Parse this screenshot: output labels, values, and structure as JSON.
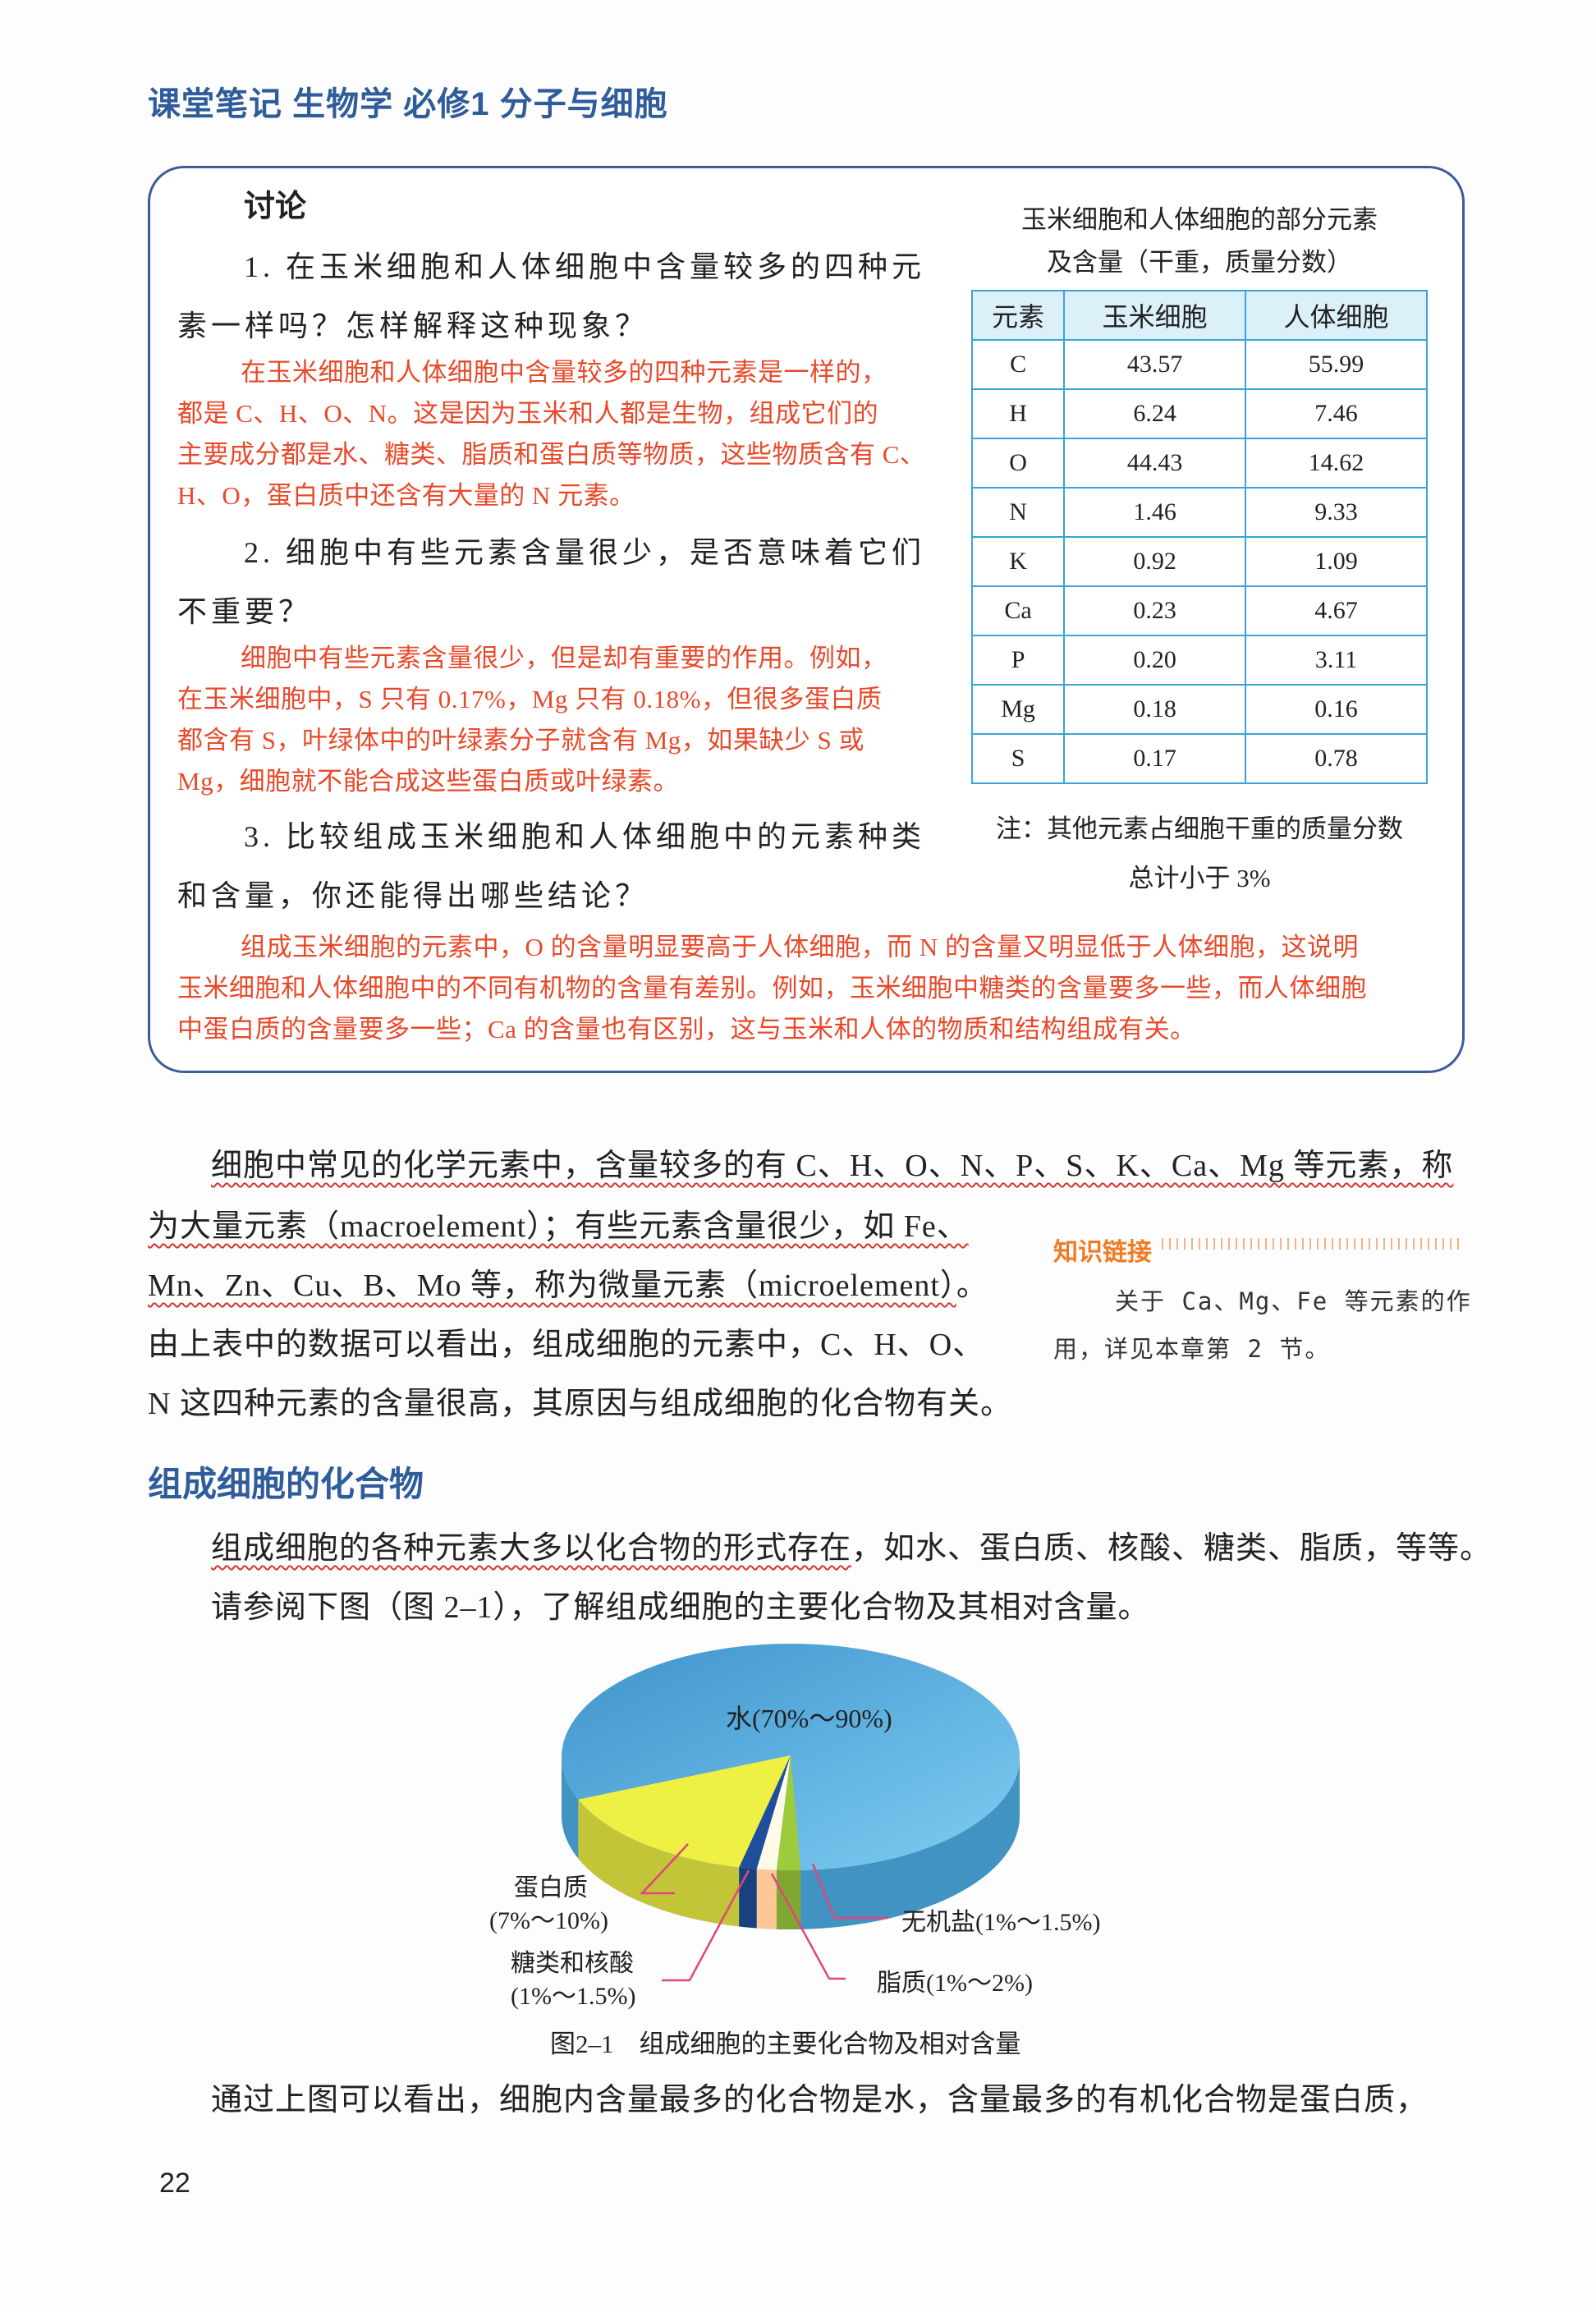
{
  "running_head": "课堂笔记 生物学 必修1 分子与细胞",
  "discussion": {
    "title": "讨论",
    "q1": [
      "1. 在玉米细胞和人体细胞中含量较多的四种元",
      "素一样吗？怎样解释这种现象？"
    ],
    "a1": [
      "在玉米细胞和人体细胞中含量较多的四种元素是一样的，",
      "都是 C、H、O、N。这是因为玉米和人都是生物，组成它们的",
      "主要成分都是水、糖类、脂质和蛋白质等物质，这些物质含有 C、",
      "H、O，蛋白质中还含有大量的 N 元素。"
    ],
    "q2": [
      "2. 细胞中有些元素含量很少，是否意味着它们",
      "不重要？"
    ],
    "a2": [
      "细胞中有些元素含量很少，但是却有重要的作用。例如，",
      "在玉米细胞中，S 只有 0.17%，Mg 只有 0.18%，但很多蛋白质",
      "都含有 S，叶绿体中的叶绿素分子就含有 Mg，如果缺少 S 或",
      "Mg，细胞就不能合成这些蛋白质或叶绿素。"
    ],
    "q3": [
      "3. 比较组成玉米细胞和人体细胞中的元素种类",
      "和含量，你还能得出哪些结论？"
    ],
    "a3": [
      "组成玉米细胞的元素中，O 的含量明显要高于人体细胞，而 N 的含量又明显低于人体细胞，这说明",
      "玉米细胞和人体细胞中的不同有机物的含量有差别。例如，玉米细胞中糖类的含量要多一些，而人体细胞",
      "中蛋白质的含量要多一些；Ca 的含量也有区别，这与玉米和人体的物质和结构组成有关。"
    ]
  },
  "table": {
    "caption": [
      "玉米细胞和人体细胞的部分元素",
      "及含量（干重，质量分数）"
    ],
    "headers": [
      "元素",
      "玉米细胞",
      "人体细胞"
    ],
    "rows": [
      [
        "C",
        "43.57",
        "55.99"
      ],
      [
        "H",
        "6.24",
        "7.46"
      ],
      [
        "O",
        "44.43",
        "14.62"
      ],
      [
        "N",
        "1.46",
        "9.33"
      ],
      [
        "K",
        "0.92",
        "1.09"
      ],
      [
        "Ca",
        "0.23",
        "4.67"
      ],
      [
        "P",
        "0.20",
        "3.11"
      ],
      [
        "Mg",
        "0.18",
        "0.16"
      ],
      [
        "S",
        "0.17",
        "0.78"
      ]
    ],
    "note": [
      "注：其他元素占细胞干重的质量分数",
      "总计小于 3%"
    ]
  },
  "body1": {
    "l1": "细胞中常见的化学元素中，含量较多的有 C、H、O、N、P、S、K、Ca、Mg 等元素，称",
    "l2": "为大量元素（macroelement）；有些元素含量很少，如 Fe、",
    "l3": "Mn、Zn、Cu、B、Mo 等，称为微量元素（microelement）",
    "l3_end": "。",
    "l4": "由上表中的数据可以看出，组成细胞的元素中，C、H、O、",
    "l5": "N 这四种元素的含量很高，其原因与组成细胞的化合物有关。"
  },
  "knowledge_link": {
    "title": "知识链接",
    "lines": [
      "关于 Ca、Mg、Fe 等元素的作",
      "用，详见本章第 2 节。"
    ]
  },
  "section": {
    "heading": "组成细胞的化合物",
    "l1_underlined": "组成细胞的各种元素大多以化合物的形式存在",
    "l1_rest": "，如水、蛋白质、核酸、糖类、脂质，等等。",
    "l2": "请参阅下图（图 2–1），了解组成细胞的主要化合物及其相对含量。"
  },
  "chart_data": {
    "type": "pie",
    "title": "图2–1　组成细胞的主要化合物及相对含量",
    "style": "3d",
    "slices": [
      {
        "name": "水",
        "range": "70%～90%",
        "min": 70,
        "max": 90,
        "color": "#4aa8dc"
      },
      {
        "name": "蛋白质",
        "range": "7%～10%",
        "min": 7,
        "max": 10,
        "color": "#eef044"
      },
      {
        "name": "糖类和核酸",
        "range": "1%～1.5%",
        "min": 1,
        "max": 1.5,
        "color": "#1f4f9c"
      },
      {
        "name": "脂质",
        "range": "1%～2%",
        "min": 1,
        "max": 2,
        "color": "#fdd4a8"
      },
      {
        "name": "无机盐",
        "range": "1%～1.5%",
        "min": 1,
        "max": 1.5,
        "color": "#9ccc3c"
      }
    ],
    "labels": {
      "water": "水(70%～90%)",
      "protein": [
        "蛋白质",
        "(7%～10%)"
      ],
      "sugar": [
        "糖类和核酸",
        "(1%～1.5%)"
      ],
      "salt": "无机盐(1%～1.5%)",
      "lipid": "脂质(1%～2%)"
    },
    "leader_color": "#e0457e"
  },
  "last_line": "通过上图可以看出，细胞内含量最多的化合物是水，含量最多的有机化合物是蛋白质，",
  "page_number": "22"
}
